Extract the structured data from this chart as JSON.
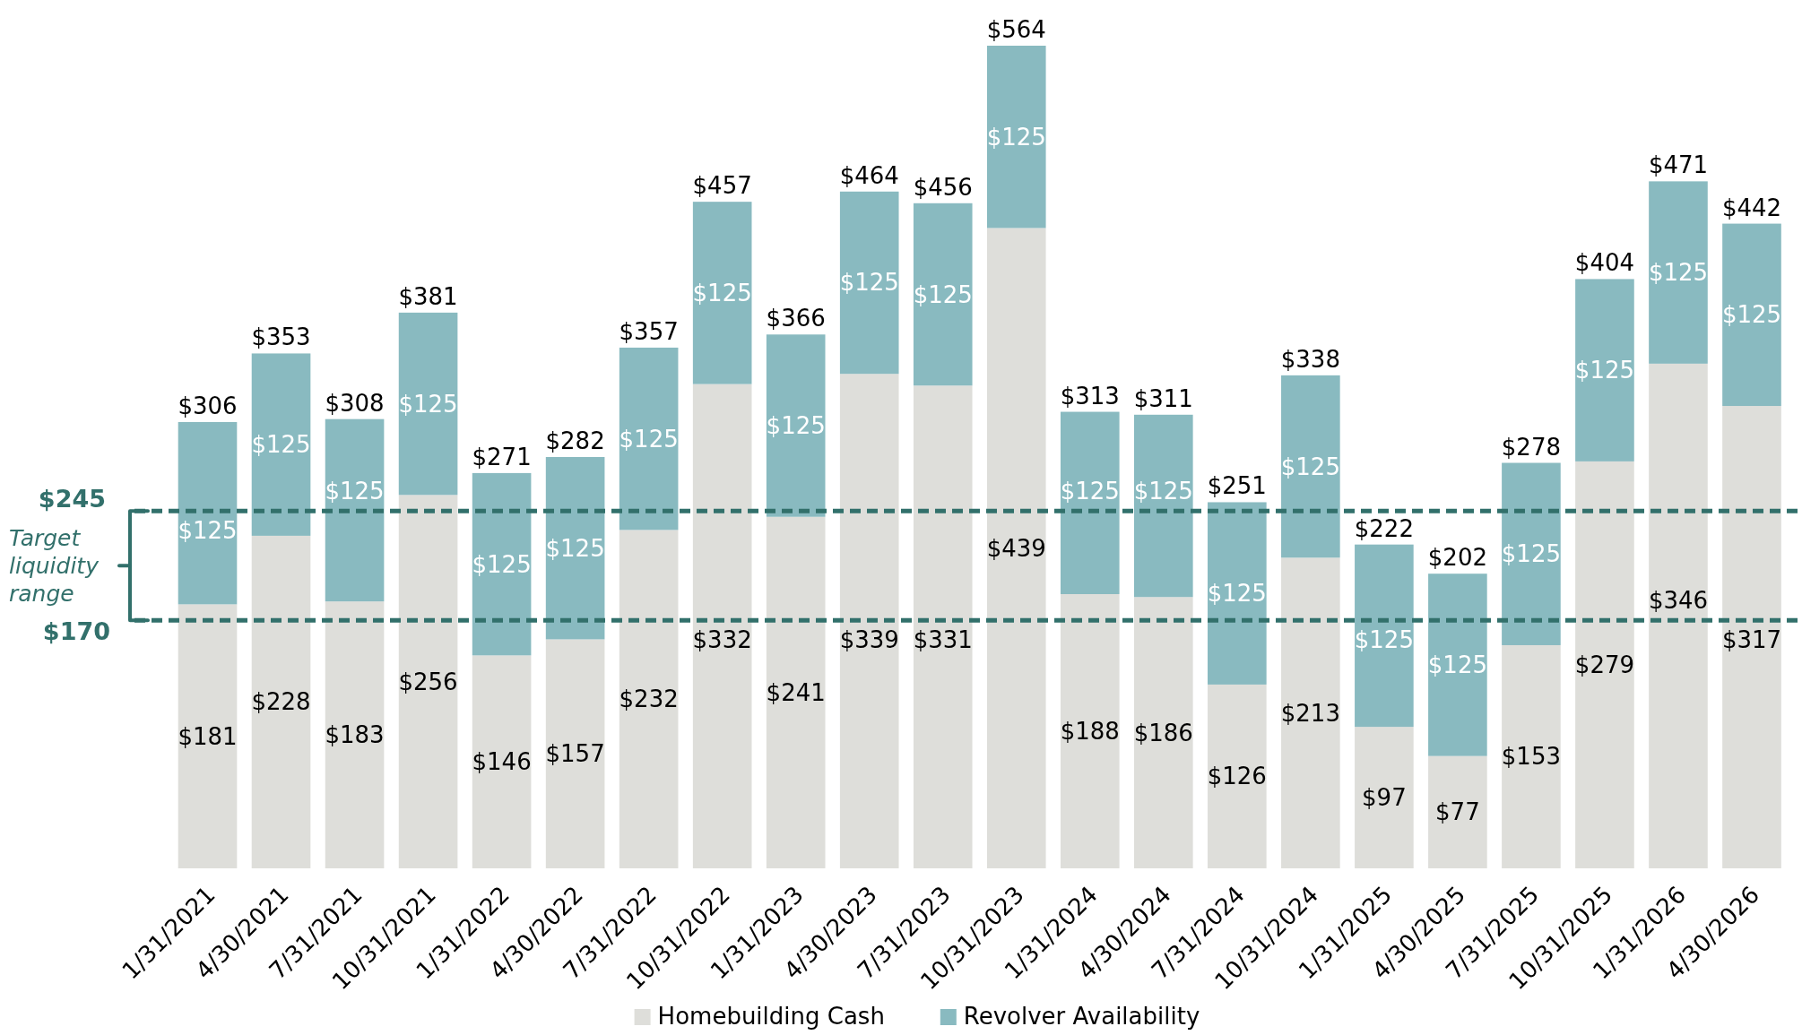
{
  "chart_data": {
    "type": "bar",
    "stacked": true,
    "categories": [
      "1/31/2021",
      "4/30/2021",
      "7/31/2021",
      "10/31/2021",
      "1/31/2022",
      "4/30/2022",
      "7/31/2022",
      "10/31/2022",
      "1/31/2023",
      "4/30/2023",
      "7/31/2023",
      "10/31/2023",
      "1/31/2024",
      "4/30/2024",
      "7/31/2024",
      "10/31/2024",
      "1/31/2025",
      "4/30/2025",
      "7/31/2025",
      "10/31/2025",
      "1/31/2026",
      "4/30/2026"
    ],
    "series": [
      {
        "name": "Homebuilding Cash",
        "color": "#dededa",
        "values": [
          181,
          228,
          183,
          256,
          146,
          157,
          232,
          332,
          241,
          339,
          331,
          439,
          188,
          186,
          126,
          213,
          97,
          77,
          153,
          279,
          346,
          317
        ],
        "value_labels": [
          "$181",
          "$228",
          "$183",
          "$256",
          "$146",
          "$157",
          "$232",
          "$332",
          "$241",
          "$339",
          "$331",
          "$439",
          "$188",
          "$186",
          "$126",
          "$213",
          "$97",
          "$77",
          "$153",
          "$279",
          "$346",
          "$317"
        ]
      },
      {
        "name": "Revolver Availability",
        "color": "#89bac0",
        "values": [
          125,
          125,
          125,
          125,
          125,
          125,
          125,
          125,
          125,
          125,
          125,
          125,
          125,
          125,
          125,
          125,
          125,
          125,
          125,
          125,
          125,
          125
        ],
        "value_labels": [
          "$125",
          "$125",
          "$125",
          "$125",
          "$125",
          "$125",
          "$125",
          "$125",
          "$125",
          "$125",
          "$125",
          "$125",
          "$125",
          "$125",
          "$125",
          "$125",
          "$125",
          "$125",
          "$125",
          "$125",
          "$125",
          "$125"
        ]
      }
    ],
    "totals": [
      "$306",
      "$353",
      "$308",
      "$381",
      "$271",
      "$282",
      "$357",
      "$457",
      "$366",
      "$464",
      "$456",
      "$564",
      "$313",
      "$311",
      "$251",
      "$338",
      "$222",
      "$202",
      "$278",
      "$404",
      "$471",
      "$442"
    ],
    "ref_lines": [
      {
        "axis": "y",
        "value": 245,
        "label": "$245",
        "color": "#32706b",
        "line_style": "dashed"
      },
      {
        "axis": "y",
        "value": 170,
        "label": "$170",
        "color": "#32706b",
        "line_style": "dashed"
      }
    ],
    "annotations": [
      "Target liquidity range"
    ],
    "legend": "bottom"
  }
}
